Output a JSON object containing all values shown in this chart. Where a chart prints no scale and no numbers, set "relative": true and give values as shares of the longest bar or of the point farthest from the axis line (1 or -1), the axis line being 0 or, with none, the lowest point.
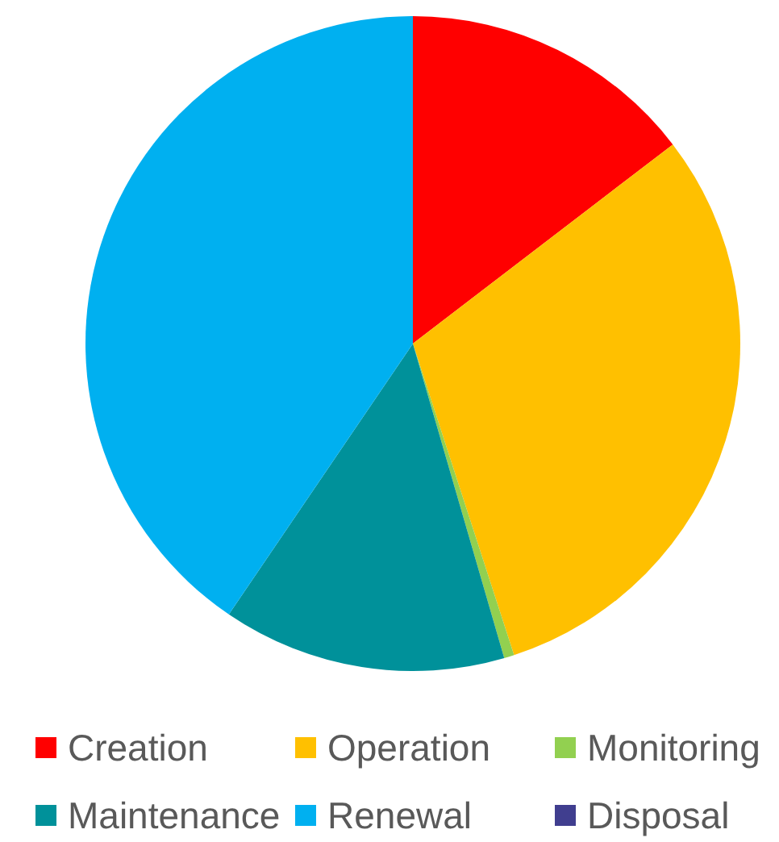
{
  "chart_data": {
    "type": "pie",
    "relative": true,
    "categories": [
      "Creation",
      "Operation",
      "Monitoring",
      "Maintenance",
      "Renewal",
      "Disposal"
    ],
    "values": [
      14.6,
      30.4,
      0.5,
      14,
      40.5,
      0
    ],
    "colors": [
      "#ff0000",
      "#ffc000",
      "#92d050",
      "#00919a",
      "#00b0f0",
      "#403e8f"
    ],
    "legend": "bottom"
  }
}
